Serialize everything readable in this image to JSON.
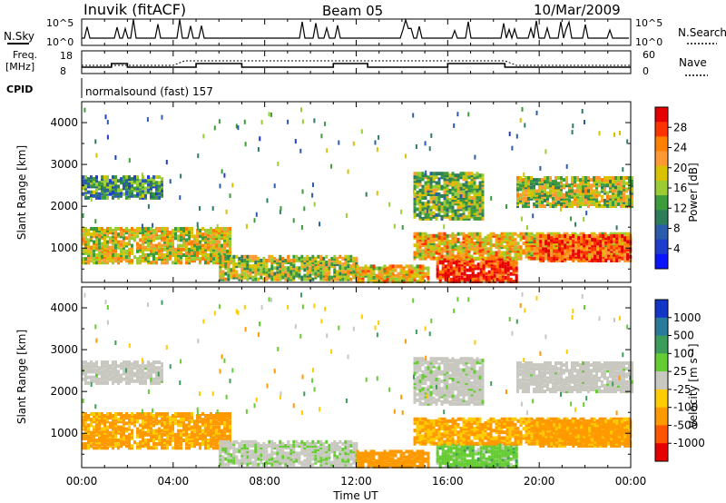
{
  "header": {
    "station": "Inuvik (fitACF)",
    "beam": "Beam 05",
    "date": "10/Mar/2009"
  },
  "top_panels": {
    "nsky_label": "N.Sky",
    "nsky_ticks": [
      "10^5",
      "10^0"
    ],
    "nsearch_label": "N.Search",
    "nsearch_ticks": [
      "10^5",
      "10^0"
    ],
    "freq_label": "Freq.",
    "freq_unit": "[MHz]",
    "freq_ticks": [
      "18",
      "8"
    ],
    "nave_label": "Nave",
    "nave_ticks": [
      "60",
      "0"
    ],
    "cpid_label": "CPID",
    "cpid_value": "normalsound (fast) 157"
  },
  "power_colorbar": {
    "label": "Power [dB]",
    "ticks": [
      "28",
      "24",
      "20",
      "16",
      "12",
      "8",
      "4"
    ],
    "colors": [
      "#e60000",
      "#ff3300",
      "#ff7f00",
      "#ff9933",
      "#d9c200",
      "#9ccc33",
      "#3c9c3c",
      "#2e7d5a",
      "#2a5cab",
      "#1e3dcc",
      "#0a14ff"
    ]
  },
  "velocity_colorbar": {
    "label": "Velocity [m s⁻¹]",
    "ticks": [
      "1000",
      "500",
      "100",
      "25",
      "-25",
      "-100",
      "-500",
      "-1000"
    ],
    "colors": [
      "#1436c8",
      "#2a7a9c",
      "#3c9c5a",
      "#66cc33",
      "#c8c8c0",
      "#ffcc00",
      "#ff9900",
      "#ff5500",
      "#e60000"
    ]
  },
  "chart_data": {
    "type": "heatmap",
    "panels": [
      {
        "name": "Power",
        "ylabel": "Slant Range [km]",
        "colorbar": "Power [dB]"
      },
      {
        "name": "Velocity",
        "ylabel": "Slant Range [km]",
        "colorbar": "Velocity [m s⁻¹]"
      }
    ],
    "xlabel": "Time UT",
    "x_ticks": [
      "00:00",
      "04:00",
      "08:00",
      "12:00",
      "16:00",
      "20:00",
      "00:00"
    ],
    "xlim_hours": [
      0,
      24
    ],
    "y_ticks": [
      1000,
      2000,
      3000,
      4000
    ],
    "ylim_km": [
      180,
      4500
    ],
    "regions": [
      {
        "t0": 0.0,
        "t1": 6.5,
        "r0": 650,
        "r1": 1500,
        "power": 20,
        "velocity": -150
      },
      {
        "t0": 6.0,
        "t1": 12.0,
        "r0": 250,
        "r1": 800,
        "power": 18,
        "velocity": 15
      },
      {
        "t0": 12.0,
        "t1": 15.2,
        "r0": 200,
        "r1": 600,
        "power": 22,
        "velocity": -300
      },
      {
        "t0": 15.5,
        "t1": 19.0,
        "r0": 200,
        "r1": 750,
        "power": 30,
        "velocity": 60
      },
      {
        "t0": 14.5,
        "t1": 24.0,
        "r0": 750,
        "r1": 1350,
        "power": 22,
        "velocity": -120
      },
      {
        "t0": 20.0,
        "t1": 24.0,
        "r0": 700,
        "r1": 1300,
        "power": 28,
        "velocity": -180
      },
      {
        "t0": 14.5,
        "t1": 17.5,
        "r0": 1700,
        "r1": 2800,
        "power": 16,
        "velocity": 10
      },
      {
        "t0": 0.0,
        "t1": 3.5,
        "r0": 2200,
        "r1": 2700,
        "power": 12,
        "velocity": 5
      },
      {
        "t0": 19.0,
        "t1": 24.0,
        "r0": 2000,
        "r1": 2700,
        "power": 18,
        "velocity": 5
      }
    ]
  }
}
